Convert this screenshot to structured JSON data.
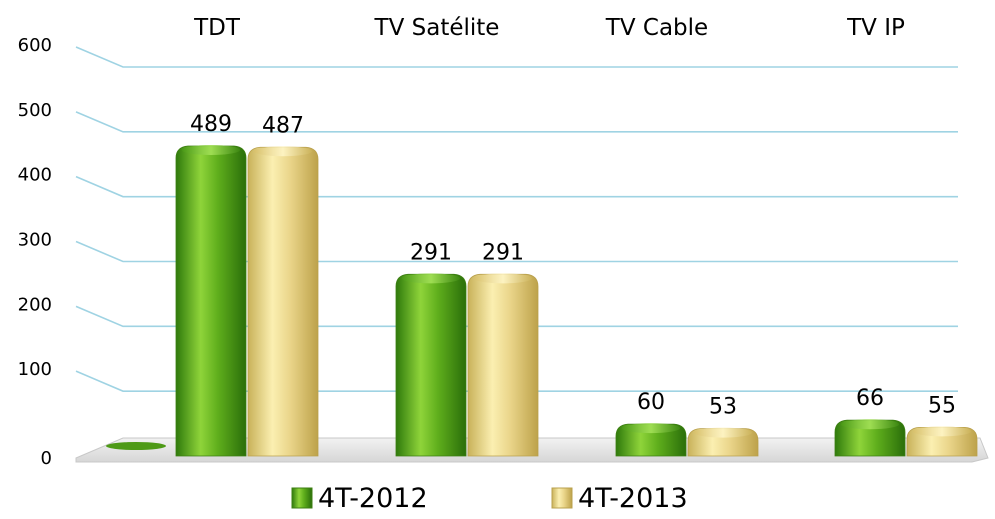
{
  "chart_data": {
    "type": "bar",
    "categories": [
      "TDT",
      "TV Satélite",
      "TV Cable",
      "TV IP"
    ],
    "series": [
      {
        "name": "4T-2012",
        "values": [
          489,
          291,
          60,
          66
        ],
        "color": "#5aa51a"
      },
      {
        "name": "4T-2013",
        "values": [
          487,
          291,
          53,
          55
        ],
        "color": "#e6d07a"
      }
    ],
    "ylim": [
      0,
      600
    ],
    "yticks": [
      0,
      100,
      200,
      300,
      400,
      500,
      600
    ],
    "category_label_position": "top",
    "grid": true,
    "grid_color": "#9fd3e3",
    "legend": {
      "position": "bottom-center",
      "items": [
        "4T-2012",
        "4T-2013"
      ]
    },
    "title": "",
    "xlabel": "",
    "ylabel": ""
  }
}
